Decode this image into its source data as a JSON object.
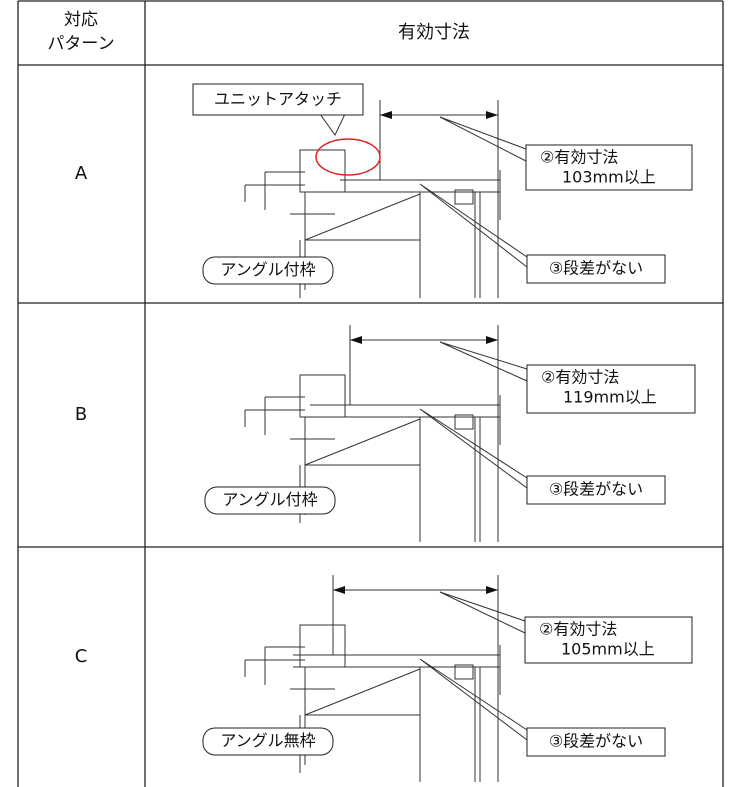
{
  "header": {
    "pattern": [
      "対応",
      "パターン"
    ],
    "dimension": "有効寸法"
  },
  "rows": [
    {
      "label": "A",
      "unit_callout": "ユニットアタッチ",
      "dimension_callout": [
        "②有効寸法",
        "103mm以上"
      ],
      "step_callout": "③段差がない",
      "frame_callout": "アングル付枠"
    },
    {
      "label": "B",
      "dimension_callout": [
        "②有効寸法",
        "119mm以上"
      ],
      "step_callout": "③段差がない",
      "frame_callout": "アングル付枠"
    },
    {
      "label": "C",
      "dimension_callout": [
        "②有効寸法",
        "105mm以上"
      ],
      "step_callout": "③段差がない",
      "frame_callout": "アングル無枠"
    }
  ]
}
